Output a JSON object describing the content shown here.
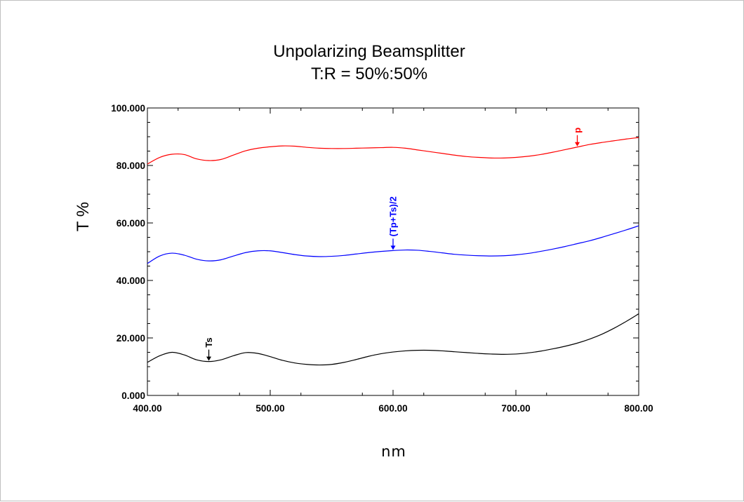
{
  "chart_data": {
    "type": "line",
    "title": "Unpolarizing Beamsplitter",
    "subtitle": "T:R = 50%:50%",
    "xlabel": "nm",
    "ylabel": "T %",
    "xlim": [
      400,
      800
    ],
    "ylim": [
      0,
      100
    ],
    "x_ticks": [
      400,
      500,
      600,
      700,
      800
    ],
    "x_tick_labels": [
      "400.00",
      "500.00",
      "600.00",
      "700.00",
      "800.00"
    ],
    "y_ticks": [
      0,
      20,
      40,
      60,
      80,
      100
    ],
    "y_tick_labels": [
      "0.000",
      "20.000",
      "40.000",
      "60.000",
      "80.000",
      "100.000"
    ],
    "grid": false,
    "series": [
      {
        "name": "p",
        "color": "#ff0000",
        "x": [
          400,
          410,
          420,
          430,
          440,
          450,
          460,
          470,
          480,
          490,
          500,
          510,
          520,
          530,
          540,
          550,
          560,
          570,
          580,
          590,
          600,
          610,
          620,
          630,
          640,
          650,
          660,
          670,
          680,
          690,
          700,
          710,
          720,
          730,
          740,
          750,
          760,
          770,
          780,
          790,
          800
        ],
        "y": [
          80.5,
          82.8,
          83.9,
          83.8,
          82.3,
          81.7,
          82.1,
          83.6,
          85.1,
          86.0,
          86.5,
          86.8,
          86.7,
          86.3,
          86.0,
          85.9,
          85.9,
          86.0,
          86.1,
          86.2,
          86.3,
          86.0,
          85.4,
          84.8,
          84.2,
          83.6,
          83.1,
          82.8,
          82.6,
          82.6,
          82.8,
          83.2,
          83.8,
          84.6,
          85.5,
          86.4,
          87.3,
          88.0,
          88.6,
          89.2,
          89.7
        ]
      },
      {
        "name": "(Tp+Ts)/2",
        "color": "#0000ff",
        "x": [
          400,
          410,
          420,
          430,
          440,
          450,
          460,
          470,
          480,
          490,
          500,
          510,
          520,
          530,
          540,
          550,
          560,
          570,
          580,
          590,
          600,
          610,
          620,
          630,
          640,
          650,
          660,
          670,
          680,
          690,
          700,
          710,
          720,
          730,
          740,
          750,
          760,
          770,
          780,
          790,
          800
        ],
        "y": [
          45.9,
          48.5,
          49.5,
          48.8,
          47.4,
          46.8,
          47.2,
          48.5,
          49.7,
          50.3,
          50.3,
          49.7,
          49.0,
          48.5,
          48.3,
          48.4,
          48.7,
          49.2,
          49.7,
          50.1,
          50.4,
          50.6,
          50.5,
          50.1,
          49.6,
          49.1,
          48.8,
          48.6,
          48.5,
          48.6,
          48.9,
          49.4,
          50.1,
          50.9,
          51.8,
          52.8,
          53.8,
          55.0,
          56.3,
          57.6,
          59.0
        ]
      },
      {
        "name": "Ts",
        "color": "#000000",
        "x": [
          400,
          410,
          420,
          430,
          440,
          450,
          460,
          470,
          480,
          490,
          500,
          510,
          520,
          530,
          540,
          550,
          560,
          570,
          580,
          590,
          600,
          610,
          620,
          630,
          640,
          650,
          660,
          670,
          680,
          690,
          700,
          710,
          720,
          730,
          740,
          750,
          760,
          770,
          780,
          790,
          800
        ],
        "y": [
          11.5,
          13.8,
          15.0,
          14.1,
          12.4,
          11.8,
          12.4,
          13.8,
          14.9,
          14.6,
          13.5,
          12.2,
          11.3,
          10.8,
          10.6,
          10.8,
          11.5,
          12.5,
          13.6,
          14.5,
          15.1,
          15.5,
          15.7,
          15.7,
          15.5,
          15.2,
          14.9,
          14.6,
          14.4,
          14.3,
          14.4,
          14.8,
          15.4,
          16.2,
          17.1,
          18.2,
          19.6,
          21.3,
          23.4,
          25.8,
          28.4
        ]
      }
    ],
    "annotations": [
      {
        "text": "p",
        "series": "p",
        "x": 750,
        "color": "#ff0000"
      },
      {
        "text": "(Tp+Ts)/2",
        "series": "(Tp+Ts)/2",
        "x": 600,
        "color": "#0000ff"
      },
      {
        "text": "Ts",
        "series": "Ts",
        "x": 450,
        "color": "#000000"
      }
    ]
  }
}
